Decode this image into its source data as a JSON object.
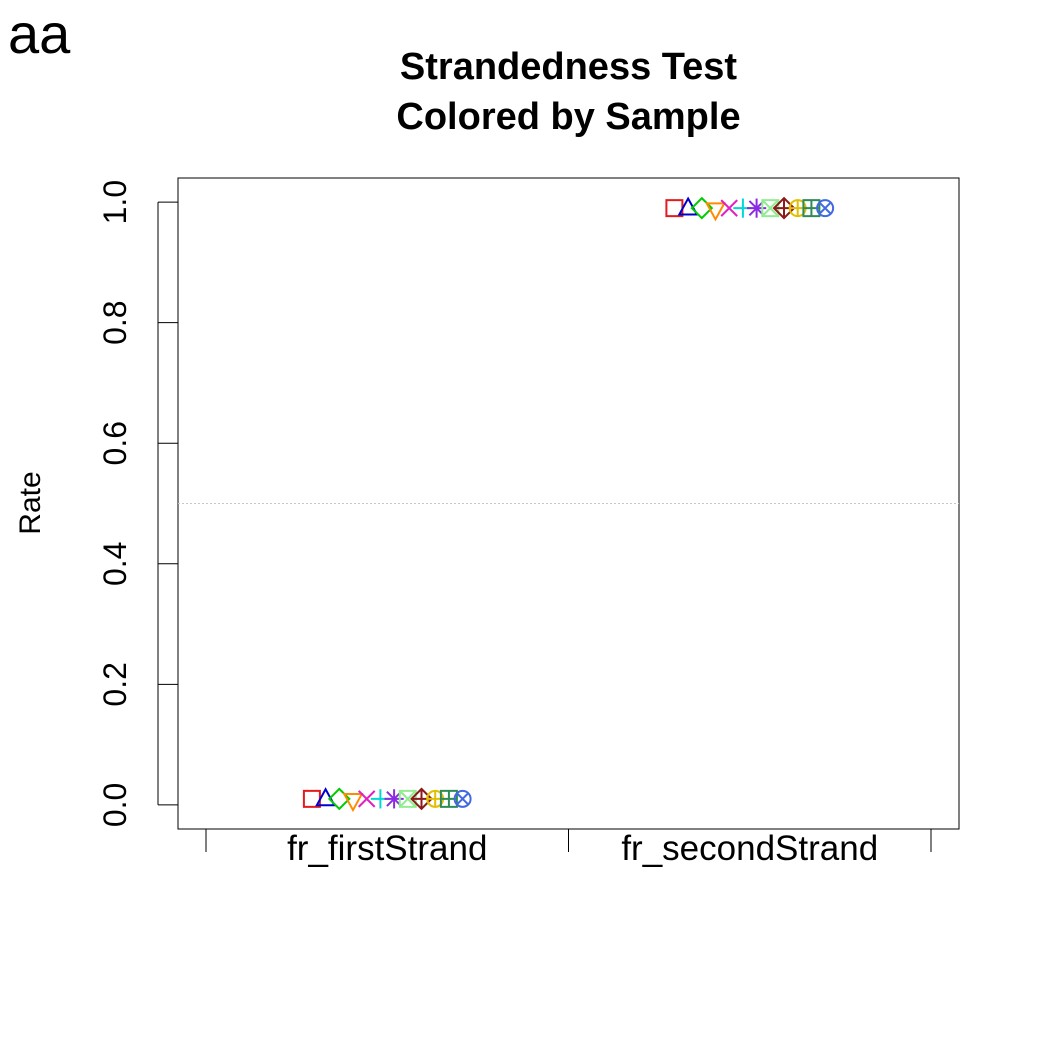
{
  "panel_label": "aa",
  "chart_data": {
    "type": "scatter",
    "title": "Strandedness Test",
    "subtitle": "Colored by Sample",
    "xlabel": "",
    "ylabel": "Rate",
    "categories": [
      "fr_firstStrand",
      "fr_secondStrand"
    ],
    "ylim": [
      -0.04,
      1.04
    ],
    "yticks": [
      "0.0",
      "0.2",
      "0.4",
      "0.6",
      "0.8",
      "1.0"
    ],
    "reference_line": 0.5,
    "grid": false,
    "legend": "none",
    "series": [
      {
        "color": "#e41a1c",
        "symbol": "square",
        "values": [
          0.01,
          0.99
        ]
      },
      {
        "color": "#0000cd",
        "symbol": "triangle",
        "values": [
          0.01,
          0.99
        ]
      },
      {
        "color": "#00cd00",
        "symbol": "diamond",
        "values": [
          0.01,
          0.99
        ]
      },
      {
        "color": "#ff8c00",
        "symbol": "triangle-down",
        "values": [
          0.01,
          0.99
        ]
      },
      {
        "color": "#e020c0",
        "symbol": "x",
        "values": [
          0.01,
          0.99
        ]
      },
      {
        "color": "#00d8d8",
        "symbol": "plus",
        "values": [
          0.01,
          0.99
        ]
      },
      {
        "color": "#8a2be2",
        "symbol": "asterisk",
        "values": [
          0.01,
          0.99
        ]
      },
      {
        "color": "#90ee90",
        "symbol": "square-x",
        "values": [
          0.01,
          0.99
        ]
      },
      {
        "color": "#8b1a1a",
        "symbol": "diamond-plus",
        "values": [
          0.01,
          0.99
        ]
      },
      {
        "color": "#e0c000",
        "symbol": "circle-plus",
        "values": [
          0.01,
          0.99
        ]
      },
      {
        "color": "#2e8b57",
        "symbol": "square-plus",
        "values": [
          0.01,
          0.99
        ]
      },
      {
        "color": "#4169e1",
        "symbol": "circle-x",
        "values": [
          0.01,
          0.99
        ]
      }
    ]
  }
}
